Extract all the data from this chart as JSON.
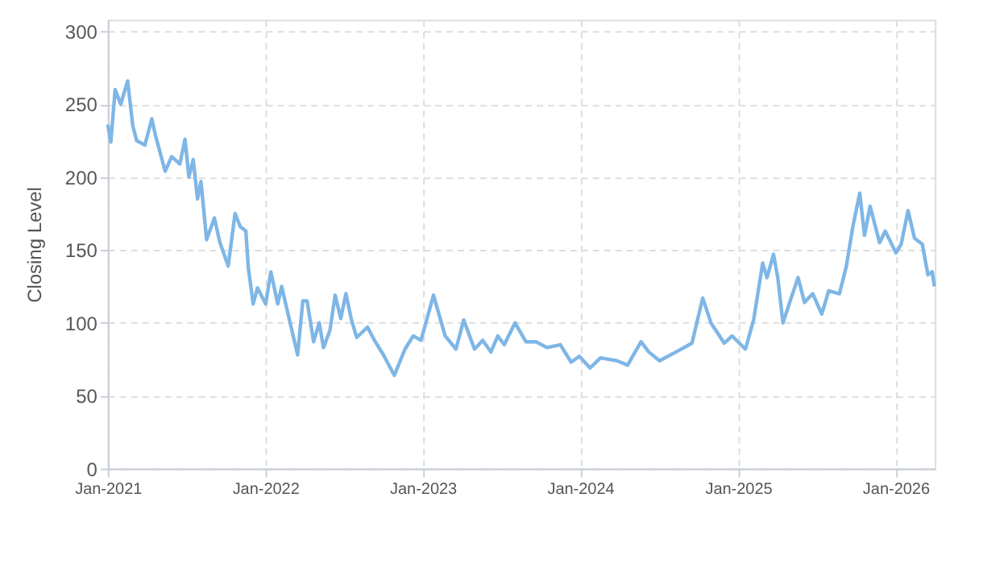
{
  "chart_data": {
    "type": "line",
    "ylabel": "Closing Level",
    "xlim": [
      "2021-01-01",
      "2026-04-02"
    ],
    "xticks": [
      {
        "value": "2021-01-01",
        "label": "Jan-2021"
      },
      {
        "value": "2022-01-01",
        "label": "Jan-2022"
      },
      {
        "value": "2023-01-01",
        "label": "Jan-2023"
      },
      {
        "value": "2024-01-01",
        "label": "Jan-2024"
      },
      {
        "value": "2025-01-01",
        "label": "Jan-2025"
      },
      {
        "value": "2026-01-01",
        "label": "Jan-2026"
      }
    ],
    "ylim": [
      0,
      308
    ],
    "yticks": [
      0,
      50,
      100,
      150,
      200,
      250,
      300
    ],
    "grid": true,
    "marker": "none",
    "line_style": "solid",
    "x": [
      "2021-01-01",
      "2021-01-08",
      "2021-01-18",
      "2021-01-31",
      "2021-02-16",
      "2021-02-28",
      "2021-03-09",
      "2021-03-28",
      "2021-04-13",
      "2021-04-22",
      "2021-05-14",
      "2021-05-29",
      "2021-06-17",
      "2021-06-29",
      "2021-07-08",
      "2021-07-18",
      "2021-07-28",
      "2021-08-05",
      "2021-08-18",
      "2021-09-05",
      "2021-09-18",
      "2021-10-07",
      "2021-10-23",
      "2021-11-04",
      "2021-11-17",
      "2021-11-23",
      "2021-12-04",
      "2021-12-14",
      "2022-01-02",
      "2022-01-14",
      "2022-01-30",
      "2022-02-08",
      "2022-02-26",
      "2022-03-17",
      "2022-03-29",
      "2022-04-08",
      "2022-04-23",
      "2022-05-06",
      "2022-05-16",
      "2022-05-31",
      "2022-06-12",
      "2022-06-25",
      "2022-07-07",
      "2022-07-19",
      "2022-08-01",
      "2022-08-26",
      "2022-09-13",
      "2022-10-02",
      "2022-10-27",
      "2022-11-21",
      "2022-12-10",
      "2022-12-28",
      "2023-01-26",
      "2023-02-22",
      "2023-03-19",
      "2023-04-06",
      "2023-05-01",
      "2023-05-20",
      "2023-06-08",
      "2023-06-24",
      "2023-07-09",
      "2023-08-03",
      "2023-08-28",
      "2023-09-21",
      "2023-10-16",
      "2023-11-16",
      "2023-12-11",
      "2023-12-30",
      "2024-01-24",
      "2024-02-17",
      "2024-03-26",
      "2024-04-20",
      "2024-05-21",
      "2024-06-08",
      "2024-07-03",
      "2024-08-10",
      "2024-09-16",
      "2024-10-11",
      "2024-10-30",
      "2024-11-30",
      "2024-12-18",
      "2025-01-18",
      "2025-02-06",
      "2025-02-27",
      "2025-03-09",
      "2025-03-24",
      "2025-04-03",
      "2025-04-15",
      "2025-05-04",
      "2025-05-20",
      "2025-06-04",
      "2025-06-23",
      "2025-07-14",
      "2025-07-30",
      "2025-08-24",
      "2025-09-09",
      "2025-09-24",
      "2025-10-10",
      "2025-10-21",
      "2025-11-03",
      "2025-11-25",
      "2025-12-08",
      "2026-01-02",
      "2026-01-14",
      "2026-01-30",
      "2026-02-14",
      "2026-03-04",
      "2026-03-17",
      "2026-03-27",
      "2026-04-01"
    ],
    "series": [
      {
        "color": "#7eb6e6",
        "values": [
          236,
          224,
          260,
          250,
          266,
          235,
          225,
          222,
          240,
          228,
          204,
          214,
          209,
          226,
          200,
          212,
          185,
          197,
          157,
          172,
          155,
          139,
          175,
          166,
          163,
          137,
          113,
          124,
          113,
          135,
          113,
          125,
          102,
          78,
          115,
          115,
          87,
          100,
          83,
          95,
          119,
          103,
          120,
          103,
          90,
          97,
          87,
          78,
          64,
          82,
          91,
          88,
          119,
          91,
          82,
          102,
          82,
          88,
          80,
          91,
          85,
          100,
          87,
          87,
          83,
          85,
          73,
          77,
          69,
          76,
          74,
          71,
          87,
          80,
          74,
          80,
          86,
          117,
          100,
          86,
          91,
          82,
          102,
          141,
          131,
          147,
          131,
          100,
          117,
          131,
          114,
          120,
          106,
          122,
          120,
          139,
          166,
          189,
          160,
          180,
          155,
          163,
          148,
          154,
          177,
          158,
          154,
          133,
          135,
          125
        ]
      }
    ]
  }
}
